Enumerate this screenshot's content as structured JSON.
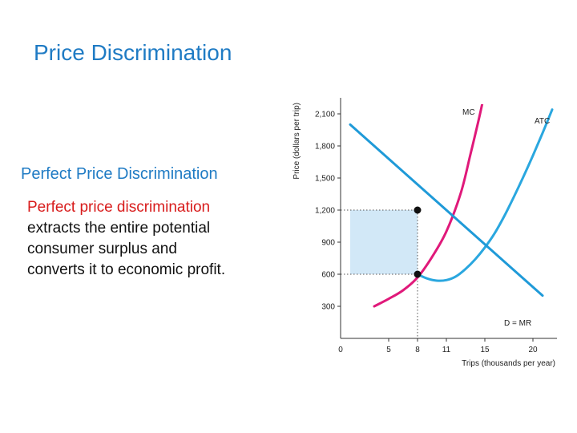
{
  "title": "Price Discrimination",
  "subheading": "Perfect Price Discrimination",
  "body_lines": [
    "Perfect price discrimination",
    "extracts the entire potential",
    "consumer surplus and",
    "converts it to economic profit."
  ],
  "highlight_line_index": 0,
  "colors": {
    "title": "#1f7bc4",
    "highlight": "#d81b1b",
    "mc": "#e0197a",
    "atc": "#2aa7df",
    "demand": "#1f9ad8",
    "surplus_fill": "#d2e8f7",
    "points": "#111111"
  },
  "chart_data": {
    "type": "line",
    "xlabel": "Trips (thousands per year)",
    "ylabel": "Price (dollars per trip)",
    "x_ticks": [
      0,
      5,
      8,
      11,
      15,
      20
    ],
    "y_ticks": [
      300,
      600,
      900,
      1200,
      1500,
      1800,
      2100
    ],
    "y_tick_labels": [
      "300",
      "600",
      "900",
      "1,200",
      "1,500",
      "1,800",
      "2,100"
    ],
    "xlim": [
      0,
      22.5
    ],
    "ylim": [
      0,
      2250
    ],
    "grid": false,
    "series": [
      {
        "name": "MC",
        "key": "mc",
        "x": [
          3.5,
          5,
          6.5,
          8,
          9.5,
          11,
          12.5,
          13.5,
          14.5,
          15.2,
          15.7
        ],
        "y": [
          300,
          370,
          450,
          570,
          760,
          1000,
          1360,
          1720,
          2100,
          2400,
          2650
        ]
      },
      {
        "name": "ATC",
        "key": "atc",
        "x": [
          8,
          9,
          10,
          11,
          12,
          13,
          14,
          15,
          16,
          17,
          18,
          19,
          20,
          21,
          22
        ],
        "y": [
          600,
          560,
          540,
          545,
          580,
          650,
          740,
          850,
          980,
          1140,
          1320,
          1510,
          1710,
          1920,
          2140
        ]
      },
      {
        "name": "D = MR",
        "key": "demand",
        "x": [
          1,
          21
        ],
        "y": [
          2000,
          400
        ]
      }
    ],
    "points": [
      {
        "x": 8,
        "y": 1200
      },
      {
        "x": 8,
        "y": 600
      }
    ],
    "surplus_region": {
      "x0": 1,
      "x1": 8,
      "y_top": 1200,
      "y_bottom": 600
    }
  }
}
